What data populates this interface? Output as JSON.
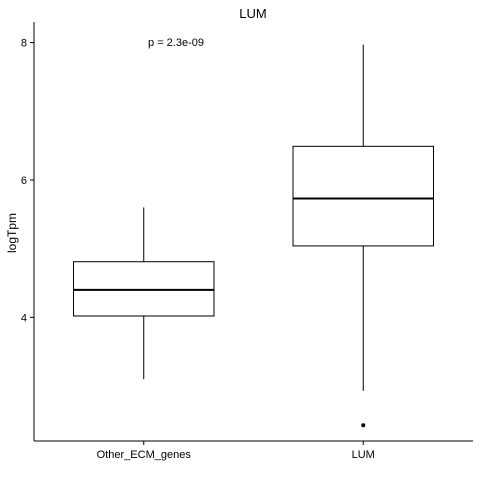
{
  "chart_data": {
    "type": "box",
    "title": "LUM",
    "xlabel": "",
    "ylabel": "logTpm",
    "ylim": [
      2.2,
      8.3
    ],
    "yticks": [
      4,
      6,
      8
    ],
    "annotation": "p = 2.3e-09",
    "categories": [
      "Other_ECM_genes",
      "LUM"
    ],
    "boxes": [
      {
        "category": "Other_ECM_genes",
        "whisker_low": 3.1,
        "q1": 4.02,
        "median": 4.4,
        "q3": 4.81,
        "whisker_high": 5.6,
        "outliers": []
      },
      {
        "category": "LUM",
        "whisker_low": 2.93,
        "q1": 5.04,
        "median": 5.73,
        "q3": 6.49,
        "whisker_high": 7.97,
        "outliers": [
          2.43
        ]
      }
    ],
    "grid": false,
    "legend": "none"
  }
}
